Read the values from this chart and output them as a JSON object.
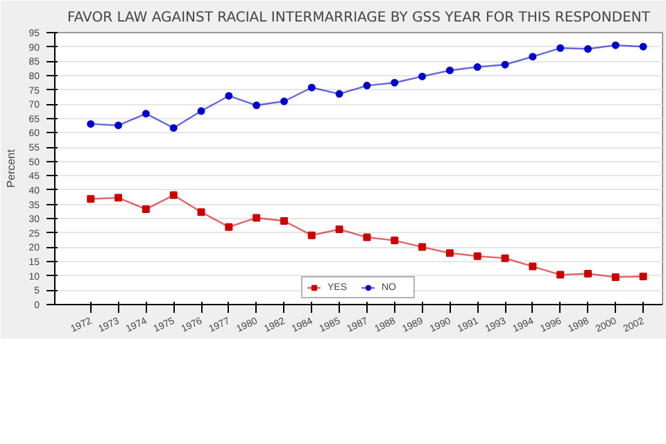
{
  "chart_data": {
    "type": "line",
    "title": "FAVOR LAW AGAINST RACIAL INTERMARRIAGE BY GSS YEAR FOR THIS RESPONDENT",
    "ylabel": "Percent",
    "categories": [
      "1972",
      "1973",
      "1974",
      "1975",
      "1976",
      "1977",
      "1980",
      "1982",
      "1984",
      "1985",
      "1987",
      "1988",
      "1989",
      "1990",
      "1991",
      "1993",
      "1994",
      "1996",
      "1998",
      "2000",
      "2002"
    ],
    "series": [
      {
        "name": "YES",
        "color": "#cc0000",
        "marker": "square",
        "values": [
          36.9,
          37.3,
          33.3,
          38.2,
          32.3,
          27.1,
          30.3,
          29.2,
          24.2,
          26.3,
          23.5,
          22.4,
          20.1,
          18.0,
          16.9,
          16.2,
          13.3,
          10.4,
          10.8,
          9.6,
          9.8
        ]
      },
      {
        "name": "NO",
        "color": "#0000cc",
        "marker": "circle",
        "values": [
          63.1,
          62.6,
          66.7,
          61.7,
          67.6,
          72.9,
          69.6,
          71.0,
          75.8,
          73.6,
          76.5,
          77.5,
          79.7,
          81.8,
          83.0,
          83.8,
          86.6,
          89.6,
          89.3,
          90.6,
          90.1
        ]
      }
    ],
    "ylim": [
      0,
      95
    ],
    "yticks": [
      0,
      5,
      10,
      15,
      20,
      25,
      30,
      35,
      40,
      45,
      50,
      55,
      60,
      65,
      70,
      75,
      80,
      85,
      90,
      95
    ],
    "grid": "y",
    "legend": "bottom"
  }
}
